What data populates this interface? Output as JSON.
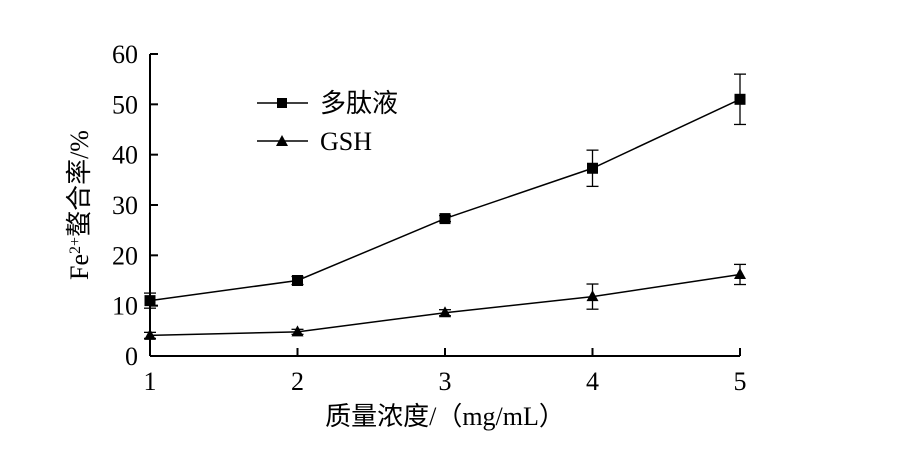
{
  "chart_data": {
    "type": "line",
    "x": [
      1,
      2,
      3,
      4,
      5
    ],
    "xlim": [
      1,
      5
    ],
    "ylim": [
      0,
      60
    ],
    "xticks": [
      "1",
      "2",
      "3",
      "4",
      "5"
    ],
    "yticks": [
      "0",
      "10",
      "20",
      "30",
      "40",
      "50",
      "60"
    ],
    "xlabel": "质量浓度/（mg/mL）",
    "ylabel_parts": {
      "main": "Fe",
      "sup": "2+",
      "rest": "螯合率/%"
    },
    "legend_position": "top-left",
    "grid": false,
    "series": [
      {
        "name": "多肽液",
        "marker": "square",
        "values": [
          11.0,
          15.0,
          27.3,
          37.3,
          51.0
        ],
        "errors": [
          1.5,
          0.8,
          0.6,
          3.6,
          5.0
        ]
      },
      {
        "name": "GSH",
        "marker": "triangle",
        "values": [
          4.1,
          4.8,
          8.6,
          11.8,
          16.2
        ],
        "errors": [
          0.6,
          0.5,
          0.6,
          2.5,
          2.0
        ]
      }
    ]
  }
}
